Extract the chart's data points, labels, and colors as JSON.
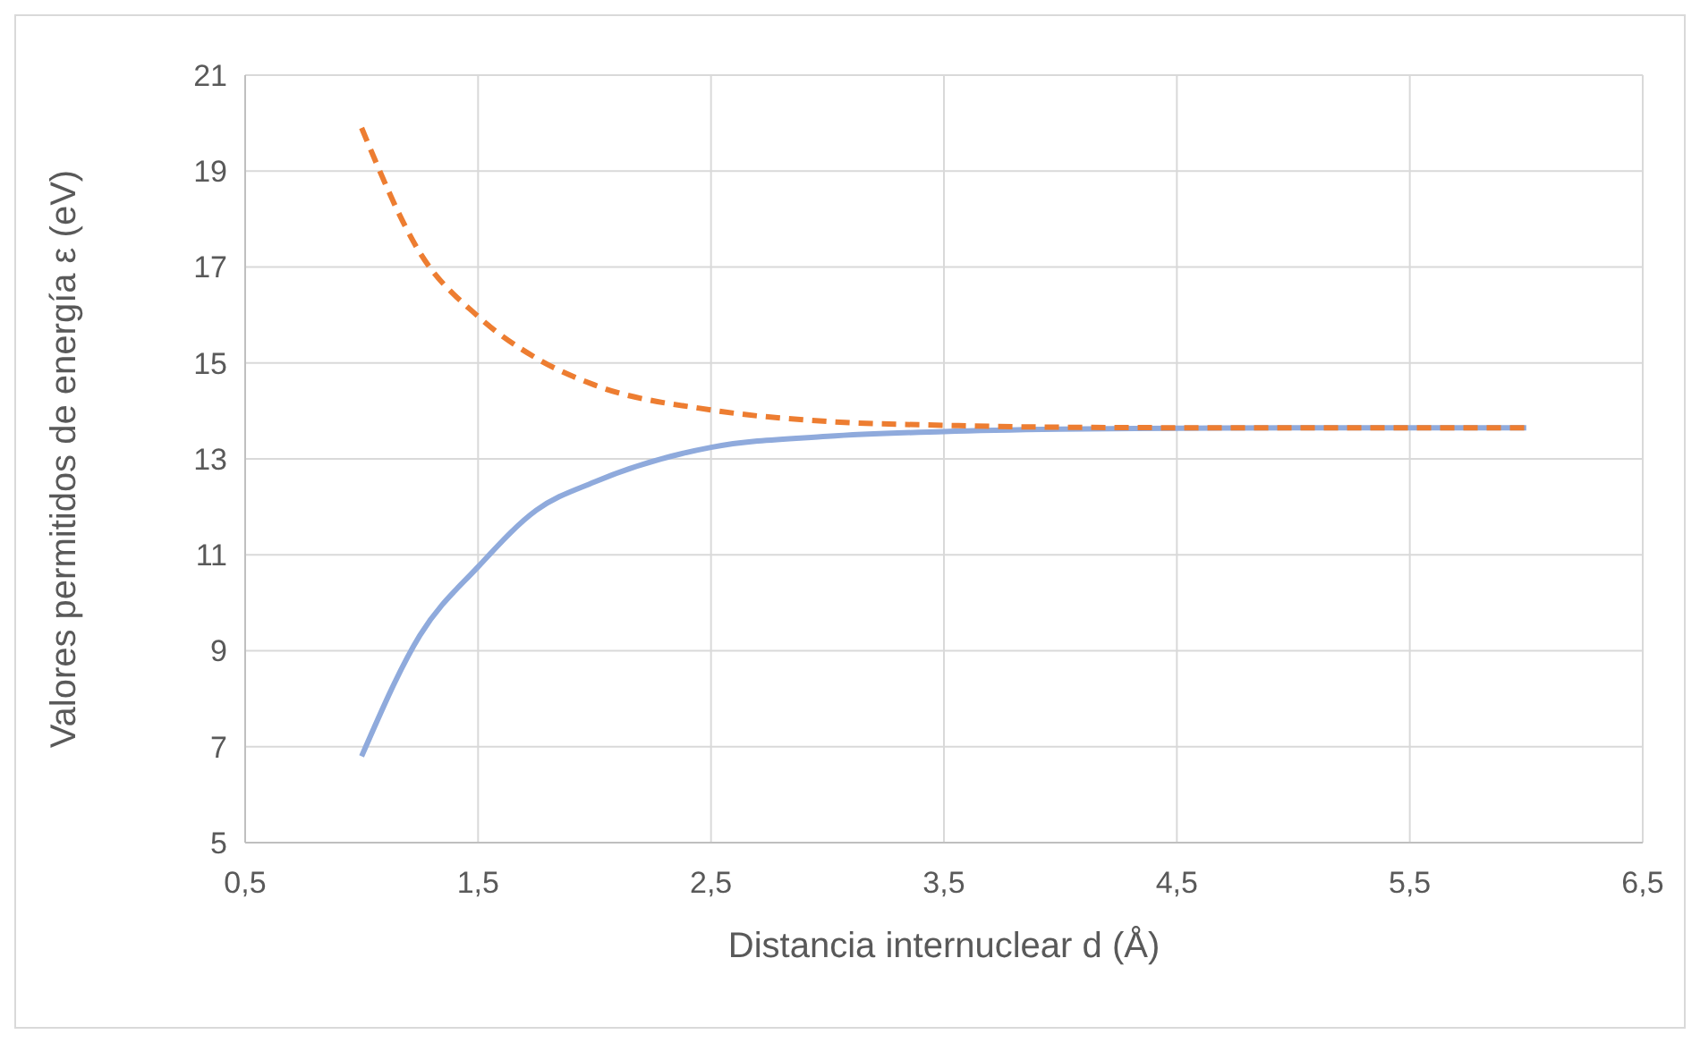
{
  "chart_data": {
    "type": "line",
    "xlabel": "Distancia internuclear d (Å)",
    "ylabel": "Valores permitidos de energía ε (eV)",
    "xlim": [
      0.5,
      6.5
    ],
    "xticks": [
      {
        "value": 0.5,
        "label": "0,5"
      },
      {
        "value": 1.5,
        "label": "1,5"
      },
      {
        "value": 2.5,
        "label": "2,5"
      },
      {
        "value": 3.5,
        "label": "3,5"
      },
      {
        "value": 4.5,
        "label": "4,5"
      },
      {
        "value": 5.5,
        "label": "5,5"
      },
      {
        "value": 6.5,
        "label": "6,5"
      }
    ],
    "ylim": [
      5,
      21
    ],
    "yticks": [
      5,
      7,
      9,
      11,
      13,
      15,
      17,
      19,
      21
    ],
    "grid": true,
    "x": [
      1,
      1.25,
      1.5,
      1.75,
      2,
      2.5,
      3,
      3.5,
      4,
      4.5,
      5,
      5.5,
      6
    ],
    "series": [
      {
        "color": "#8faadc",
        "line_style": "solid",
        "values": [
          6.8,
          9.32,
          10.75,
          11.93,
          12.52,
          13.24,
          13.47,
          13.57,
          13.62,
          13.64,
          13.65,
          13.65,
          13.65
        ]
      },
      {
        "color": "#ed7d31",
        "line_style": "dashed",
        "values": [
          19.9,
          17.3,
          15.97,
          15.1,
          14.54,
          14.02,
          13.78,
          13.7,
          13.66,
          13.65,
          13.65,
          13.65,
          13.65
        ]
      }
    ]
  }
}
